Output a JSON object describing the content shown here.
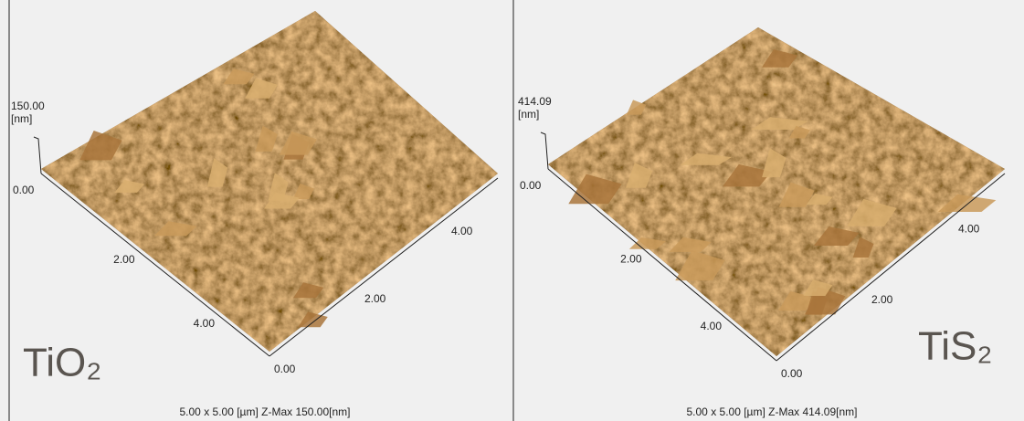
{
  "panels": [
    {
      "sample_label": "TiO₂",
      "z_max": "150.00",
      "z_unit": "[nm]",
      "z_origin": "0.00",
      "left_axis_ticks": [
        "2.00",
        "4.00"
      ],
      "corner_label": "0.00",
      "right_axis_ticks": [
        "2.00",
        "4.00"
      ],
      "caption": "5.00 x 5.00 [µm]  Z-Max 150.00[nm]"
    },
    {
      "sample_label": "TiS₂",
      "z_max": "414.09",
      "z_unit": "[nm]",
      "z_origin": "0.00",
      "left_axis_ticks": [
        "2.00",
        "4.00"
      ],
      "corner_label": "0.00",
      "right_axis_ticks": [
        "2.00",
        "4.00"
      ],
      "caption": "5.00 x 5.00 [µm]  Z-Max 414.09[nm]"
    }
  ]
}
